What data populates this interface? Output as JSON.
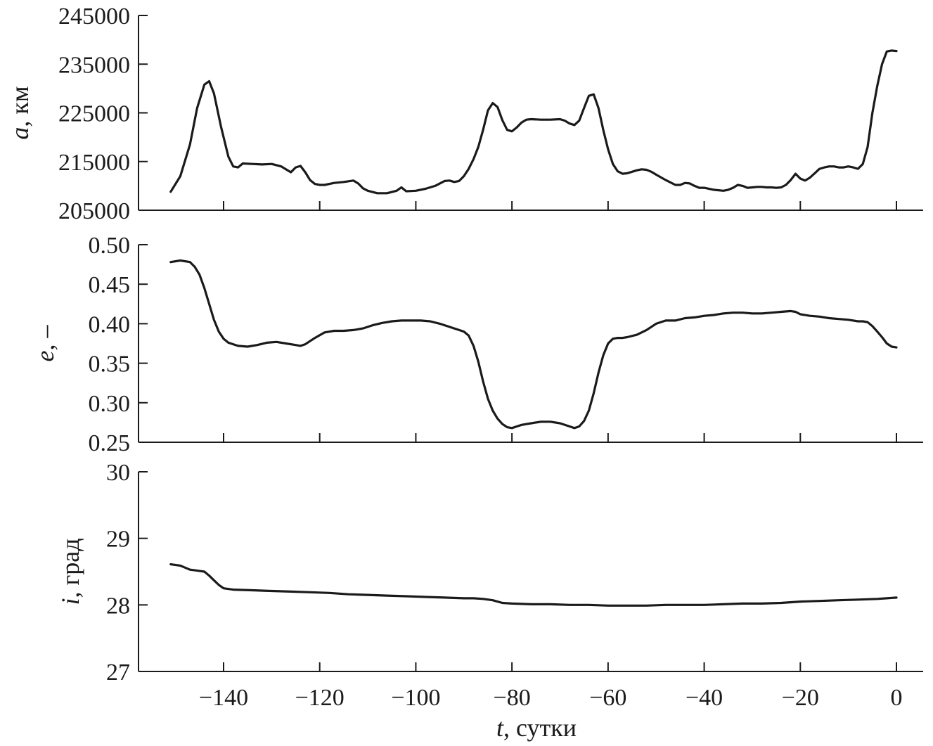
{
  "chart_data": [
    {
      "type": "line",
      "ylabel_var": "a",
      "ylabel_unit": ", км",
      "ylim": [
        205000,
        245000
      ],
      "yticks": [
        205000,
        215000,
        225000,
        235000,
        245000
      ],
      "yticklabels": [
        "205000",
        "215000",
        "225000",
        "235000",
        "245000"
      ],
      "xlim": [
        -151,
        0
      ],
      "series": [
        {
          "x": [
            -151,
            -149,
            -147,
            -145.5,
            -144,
            -143,
            -142,
            -140.5,
            -139,
            -138,
            -137,
            -136,
            -134,
            -132,
            -130,
            -128,
            -126,
            -125,
            -124,
            -123,
            -122,
            -121,
            -120,
            -119,
            -117,
            -115,
            -113,
            -112,
            -111,
            -110,
            -108,
            -106,
            -104,
            -103,
            -102.5,
            -102,
            -100,
            -98,
            -96,
            -94,
            -93,
            -92,
            -91,
            -90,
            -89,
            -88,
            -87,
            -86,
            -85,
            -84,
            -83,
            -82,
            -81,
            -80,
            -79,
            -78,
            -77,
            -76,
            -74,
            -72,
            -70,
            -69,
            -68,
            -67,
            -66,
            -65,
            -64,
            -63,
            -62,
            -61,
            -60,
            -59,
            -58,
            -57,
            -56,
            -55,
            -54,
            -53,
            -52,
            -51,
            -50,
            -48,
            -46,
            -45,
            -44,
            -43,
            -42,
            -41,
            -40,
            -38,
            -36,
            -35,
            -34,
            -33,
            -32,
            -31,
            -30,
            -29,
            -28,
            -27,
            -26,
            -25,
            -24,
            -23,
            -22,
            -21,
            -20,
            -19,
            -18,
            -17,
            -16,
            -15,
            -14,
            -13,
            -12,
            -11,
            -10,
            -9,
            -8,
            -7,
            -6,
            -5,
            -4,
            -3,
            -2,
            -1,
            0
          ],
          "y": [
            208800,
            212000,
            218500,
            226000,
            230800,
            231500,
            229000,
            222000,
            216000,
            214000,
            213800,
            214600,
            214500,
            214400,
            214500,
            214000,
            212800,
            213800,
            214100,
            212800,
            211200,
            210400,
            210200,
            210200,
            210600,
            210800,
            211100,
            210500,
            209500,
            209000,
            208500,
            208500,
            209000,
            209700,
            209300,
            208900,
            209000,
            209400,
            210000,
            211000,
            211100,
            210800,
            211000,
            212000,
            213500,
            215500,
            218000,
            221500,
            225500,
            227000,
            226200,
            223500,
            221500,
            221200,
            222000,
            223000,
            223600,
            223700,
            223600,
            223600,
            223700,
            223400,
            222800,
            222500,
            223400,
            226000,
            228500,
            228800,
            226000,
            221500,
            217500,
            214500,
            213000,
            212500,
            212600,
            212900,
            213200,
            213400,
            213300,
            212900,
            212300,
            211200,
            210200,
            210200,
            210600,
            210500,
            210000,
            209600,
            209600,
            209200,
            209000,
            209200,
            209600,
            210200,
            210000,
            209600,
            209700,
            209800,
            209800,
            209700,
            209700,
            209600,
            209700,
            210200,
            211200,
            212500,
            211500,
            211100,
            211700,
            212600,
            213500,
            213800,
            214000,
            214000,
            213800,
            213800,
            214000,
            213800,
            213500,
            214500,
            218000,
            225000,
            230500,
            235000,
            237600,
            237800,
            237700
          ]
        }
      ]
    },
    {
      "type": "line",
      "ylabel_var": "e",
      "ylabel_unit": ", –",
      "ylim": [
        0.25,
        0.5
      ],
      "yticks": [
        0.25,
        0.3,
        0.35,
        0.4,
        0.45,
        0.5
      ],
      "yticklabels": [
        "0.25",
        "0.30",
        "0.35",
        "0.40",
        "0.45",
        "0.50"
      ],
      "xlim": [
        -151,
        0
      ],
      "series": [
        {
          "x": [
            -151,
            -149,
            -147,
            -146,
            -145,
            -144,
            -143,
            -142,
            -141,
            -140,
            -139,
            -137,
            -135,
            -133,
            -131,
            -129,
            -127,
            -125,
            -124,
            -123,
            -121,
            -119,
            -117,
            -115,
            -113,
            -111,
            -109,
            -107,
            -105,
            -103,
            -101,
            -99,
            -97,
            -95,
            -93,
            -91,
            -90,
            -89,
            -88,
            -87,
            -86,
            -85,
            -84,
            -83,
            -82,
            -81,
            -80,
            -79,
            -78,
            -76,
            -74,
            -72,
            -70,
            -68,
            -67,
            -66,
            -65,
            -64,
            -63,
            -62,
            -61,
            -60,
            -59,
            -58,
            -57,
            -56,
            -54,
            -52,
            -50,
            -48,
            -46,
            -44,
            -42,
            -40,
            -38,
            -36,
            -34,
            -32,
            -30,
            -28,
            -26,
            -24,
            -22,
            -21,
            -20,
            -18,
            -16,
            -14,
            -12,
            -10,
            -8,
            -7,
            -6,
            -5,
            -4,
            -3,
            -2,
            -1,
            0
          ],
          "y": [
            0.478,
            0.48,
            0.478,
            0.472,
            0.462,
            0.445,
            0.425,
            0.405,
            0.39,
            0.381,
            0.376,
            0.372,
            0.371,
            0.373,
            0.376,
            0.377,
            0.375,
            0.373,
            0.372,
            0.374,
            0.382,
            0.389,
            0.391,
            0.391,
            0.392,
            0.394,
            0.398,
            0.401,
            0.403,
            0.404,
            0.404,
            0.404,
            0.403,
            0.4,
            0.396,
            0.392,
            0.39,
            0.385,
            0.372,
            0.352,
            0.327,
            0.305,
            0.29,
            0.28,
            0.273,
            0.269,
            0.268,
            0.27,
            0.272,
            0.274,
            0.276,
            0.276,
            0.274,
            0.27,
            0.268,
            0.27,
            0.277,
            0.29,
            0.312,
            0.338,
            0.36,
            0.375,
            0.381,
            0.382,
            0.382,
            0.383,
            0.386,
            0.392,
            0.4,
            0.404,
            0.404,
            0.407,
            0.408,
            0.41,
            0.411,
            0.413,
            0.414,
            0.414,
            0.413,
            0.413,
            0.414,
            0.415,
            0.416,
            0.415,
            0.412,
            0.41,
            0.409,
            0.407,
            0.406,
            0.405,
            0.403,
            0.403,
            0.402,
            0.397,
            0.39,
            0.383,
            0.375,
            0.371,
            0.37
          ]
        }
      ]
    },
    {
      "type": "line",
      "ylabel_var": "i",
      "ylabel_unit": ", град",
      "ylim": [
        27,
        30
      ],
      "yticks": [
        27,
        28,
        29,
        30
      ],
      "yticklabels": [
        "27",
        "28",
        "29",
        "30"
      ],
      "xlim": [
        -151,
        0
      ],
      "series": [
        {
          "x": [
            -151,
            -149,
            -148,
            -147,
            -146,
            -145,
            -144,
            -143,
            -142,
            -141,
            -140,
            -138,
            -134,
            -130,
            -126,
            -122,
            -118,
            -114,
            -110,
            -106,
            -102,
            -98,
            -94,
            -90,
            -88,
            -86,
            -84,
            -82,
            -80,
            -76,
            -72,
            -68,
            -64,
            -60,
            -56,
            -52,
            -48,
            -44,
            -40,
            -36,
            -32,
            -28,
            -24,
            -20,
            -16,
            -12,
            -8,
            -4,
            -2,
            0
          ],
          "y": [
            28.61,
            28.59,
            28.56,
            28.53,
            28.52,
            28.51,
            28.5,
            28.44,
            28.37,
            28.3,
            28.25,
            28.23,
            28.22,
            28.21,
            28.2,
            28.19,
            28.18,
            28.16,
            28.15,
            28.14,
            28.13,
            28.12,
            28.11,
            28.1,
            28.1,
            28.09,
            28.07,
            28.03,
            28.02,
            28.01,
            28.01,
            28.0,
            28.0,
            27.99,
            27.99,
            27.99,
            28.0,
            28.0,
            28.0,
            28.01,
            28.02,
            28.02,
            28.03,
            28.05,
            28.06,
            28.07,
            28.08,
            28.09,
            28.1,
            28.11
          ]
        }
      ]
    }
  ],
  "x_axis": {
    "ticks": [
      -140,
      -120,
      -100,
      -80,
      -60,
      -40,
      -20,
      0
    ],
    "ticklabels": [
      "−140",
      "−120",
      "−100",
      "−80",
      "−60",
      "−40",
      "−20",
      "0"
    ],
    "label_var": "t",
    "label_unit": ", сутки"
  }
}
